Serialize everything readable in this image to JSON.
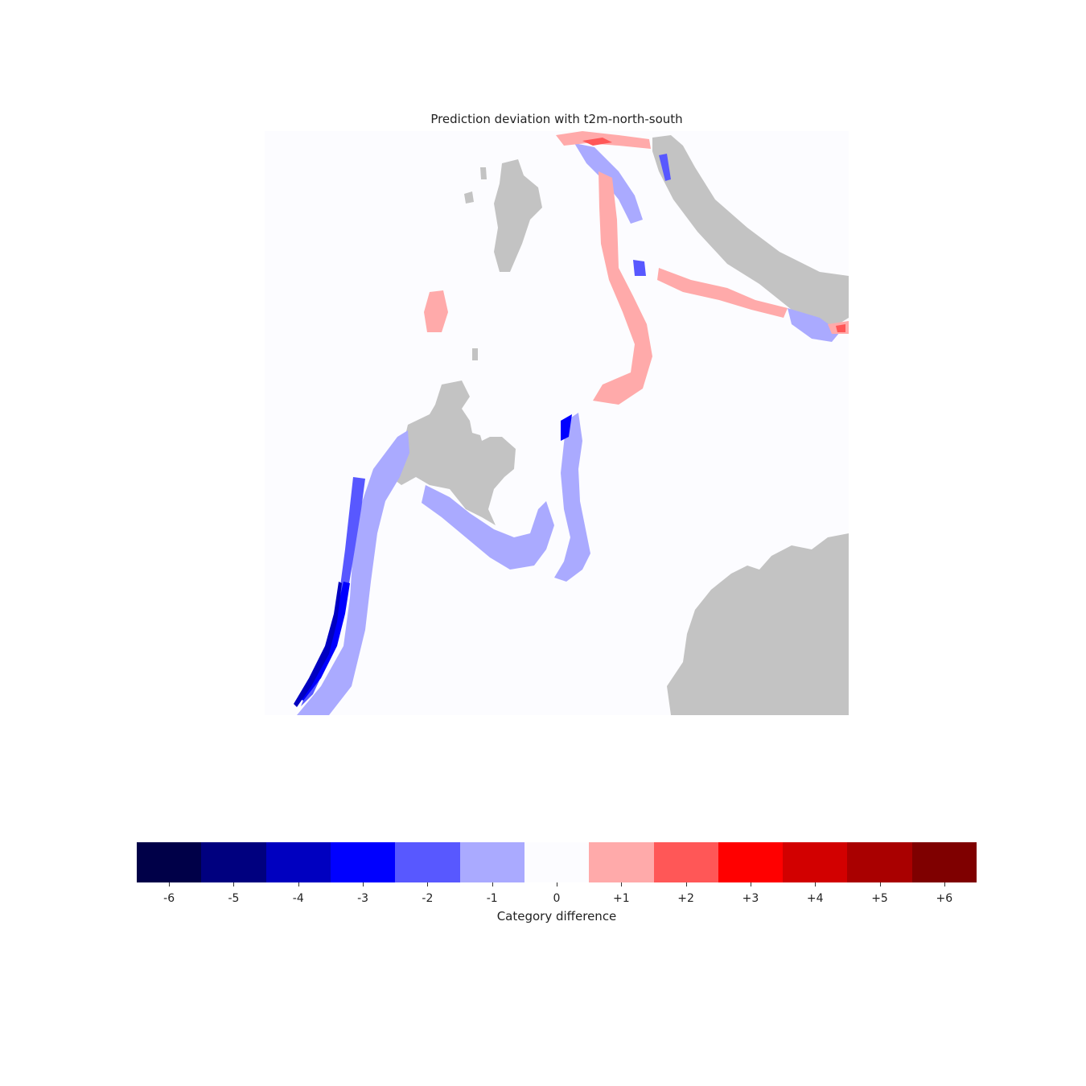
{
  "title": "Prediction deviation with t2m-north-south",
  "colorbar": {
    "label": "Category difference",
    "ticks": [
      "-6",
      "-5",
      "-4",
      "-3",
      "-2",
      "-1",
      "0",
      "+1",
      "+2",
      "+3",
      "+4",
      "+5",
      "+6"
    ],
    "colors": [
      "#000048",
      "#00007f",
      "#0000c0",
      "#0000ff",
      "#5858ff",
      "#aaaaff",
      "#fcfcff",
      "#ffaaaa",
      "#ff5757",
      "#ff0000",
      "#d20000",
      "#a90000",
      "#7f0000"
    ]
  },
  "map": {
    "land_color": "#c3c3c3",
    "ocean_color": "#fcfcff"
  }
}
